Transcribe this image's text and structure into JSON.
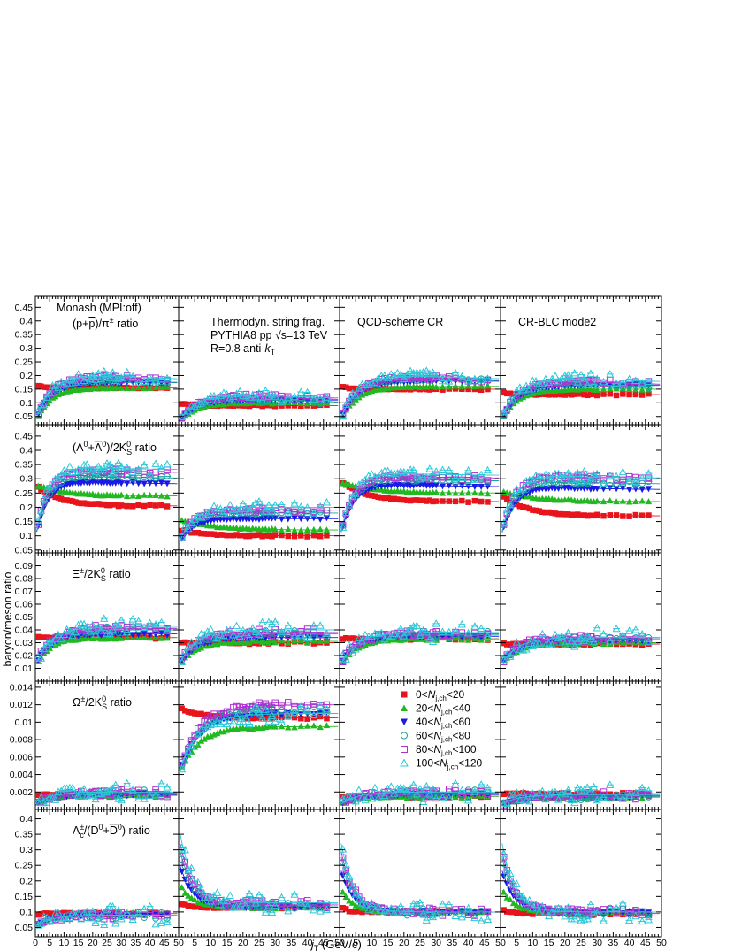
{
  "figure": {
    "ylabel": "baryon/meson ratio",
    "xlabel_main": "j",
    "xlabel_sub": "T",
    "xlabel_unit": " (GeV/c)"
  },
  "columns": [
    {
      "title_lines": [
        "Monash (MPI:off)"
      ]
    },
    {
      "title_lines": [
        "Thermodyn. string frag.",
        "PYTHIA8 pp √s=13 TeV",
        "R=0.8 anti-k_T"
      ]
    },
    {
      "title_lines": [
        "QCD-scheme CR"
      ]
    },
    {
      "title_lines": [
        "CR-BLC mode2"
      ]
    }
  ],
  "rows": [
    {
      "label": "(p+p̄)/π± ratio",
      "ylim": [
        0.02,
        0.49
      ],
      "yticks": [
        0.05,
        0.1,
        0.15,
        0.2,
        0.25,
        0.3,
        0.35,
        0.4,
        0.45
      ],
      "yticklabels": [
        "0.05",
        "0.1",
        "0.15",
        "0.2",
        "0.25",
        "0.3",
        "0.35",
        "0.4",
        "0.45"
      ]
    },
    {
      "label": "(Λ0+Λ̄0)/2K0S ratio",
      "ylim": [
        0.04,
        0.49
      ],
      "yticks": [
        0.05,
        0.1,
        0.15,
        0.2,
        0.25,
        0.3,
        0.35,
        0.4,
        0.45
      ],
      "yticklabels": [
        "0.05",
        "0.1",
        "0.15",
        "0.2",
        "0.25",
        "0.3",
        "0.35",
        "0.4",
        "0.45"
      ]
    },
    {
      "label": "Ξ±/2K0S ratio",
      "ylim": [
        0.0,
        0.1
      ],
      "yticks": [
        0.01,
        0.02,
        0.03,
        0.04,
        0.05,
        0.06,
        0.07,
        0.08,
        0.09
      ],
      "yticklabels": [
        "0.01",
        "0.02",
        "0.03",
        "0.04",
        "0.05",
        "0.06",
        "0.07",
        "0.08",
        "0.09"
      ]
    },
    {
      "label": "Ω±/2K0S ratio",
      "ylim": [
        0.0,
        0.0147
      ],
      "yticks": [
        0.002,
        0.004,
        0.006,
        0.008,
        0.01,
        0.012,
        0.014
      ],
      "yticklabels": [
        "0.002",
        "0.004",
        "0.006",
        "0.008",
        "0.01",
        "0.012",
        "0.014"
      ]
    },
    {
      "label": "Λc±/(D0+D̄0) ratio",
      "ylim": [
        0.02,
        0.43
      ],
      "yticks": [
        0.05,
        0.1,
        0.15,
        0.2,
        0.25,
        0.3,
        0.35,
        0.4
      ],
      "yticklabels": [
        "0.05",
        "0.1",
        "0.15",
        "0.2",
        "0.25",
        "0.3",
        "0.35",
        "0.4"
      ]
    }
  ],
  "xaxis": {
    "xlim": [
      0,
      50
    ],
    "ticks": [
      0,
      5,
      10,
      15,
      20,
      25,
      30,
      35,
      40,
      45,
      50
    ],
    "ticklabels": [
      "0",
      "5",
      "10",
      "15",
      "20",
      "25",
      "30",
      "35",
      "40",
      "45",
      "50"
    ]
  },
  "legend": {
    "placement": "panel row 4, column 3",
    "entries": [
      {
        "pre": "0<",
        "var": "N",
        "sub": "j,ch",
        "post": "<20"
      },
      {
        "pre": "20<",
        "var": "N",
        "sub": "j,ch",
        "post": "<40"
      },
      {
        "pre": "40<",
        "var": "N",
        "sub": "j,ch",
        "post": "<60"
      },
      {
        "pre": "60<",
        "var": "N",
        "sub": "j,ch",
        "post": "<80"
      },
      {
        "pre": "80<",
        "var": "N",
        "sub": "j,ch",
        "post": "<100"
      },
      {
        "pre": "100<",
        "var": "N",
        "sub": "j,ch",
        "post": "<120"
      }
    ]
  },
  "chart_data": {
    "type": "scatter",
    "series": [
      {
        "name": "0<Nj,ch<20",
        "color": "#e8141c",
        "marker": "filled-square"
      },
      {
        "name": "20<Nj,ch<40",
        "color": "#22b822",
        "marker": "filled-triangle-up"
      },
      {
        "name": "40<Nj,ch<60",
        "color": "#1a1ae6",
        "marker": "filled-triangle-down"
      },
      {
        "name": "60<Nj,ch<80",
        "color": "#19a0a0",
        "marker": "open-circle"
      },
      {
        "name": "80<Nj,ch<100",
        "color": "#b030d0",
        "marker": "open-square"
      },
      {
        "name": "100<Nj,ch<120",
        "color": "#2cc8d8",
        "marker": "open-triangle-up"
      }
    ],
    "x": [
      1,
      2,
      3,
      4,
      5,
      6,
      7,
      8,
      9,
      10,
      11,
      12,
      13,
      14,
      15,
      16,
      17,
      18,
      19,
      20,
      21,
      22,
      23,
      24,
      25,
      26,
      27,
      28,
      29,
      30,
      32,
      34,
      36,
      38,
      40,
      42,
      44,
      46
    ],
    "key_values": {
      "description": "Approximate plateau/asymptote values per panel and series [row][col][series]",
      "values": [
        [
          [
            0.155,
            0.155,
            0.175,
            0.185,
            0.195,
            0.2
          ],
          [
            0.09,
            0.1,
            0.11,
            0.115,
            0.125,
            0.13
          ],
          [
            0.15,
            0.16,
            0.18,
            0.19,
            0.195,
            0.2
          ],
          [
            0.13,
            0.15,
            0.165,
            0.17,
            0.18,
            0.19
          ]
        ],
        [
          [
            0.205,
            0.24,
            0.28,
            0.3,
            0.32,
            0.33
          ],
          [
            0.1,
            0.12,
            0.16,
            0.18,
            0.19,
            0.2
          ],
          [
            0.22,
            0.25,
            0.27,
            0.29,
            0.3,
            0.31
          ],
          [
            0.17,
            0.22,
            0.26,
            0.28,
            0.3,
            0.3
          ]
        ],
        [
          [
            0.034,
            0.034,
            0.037,
            0.04,
            0.041,
            0.042
          ],
          [
            0.03,
            0.031,
            0.034,
            0.037,
            0.038,
            0.04
          ],
          [
            0.033,
            0.033,
            0.035,
            0.036,
            0.037,
            0.038
          ],
          [
            0.029,
            0.03,
            0.032,
            0.033,
            0.034,
            0.034
          ]
        ],
        [
          [
            0.0017,
            0.0016,
            0.0017,
            0.0018,
            0.0019,
            0.002
          ],
          [
            0.0105,
            0.0095,
            0.011,
            0.0115,
            0.012,
            0.011
          ],
          [
            0.0015,
            0.0015,
            0.0017,
            0.0018,
            0.0019,
            0.002
          ],
          [
            0.0018,
            0.0014,
            0.0015,
            0.0015,
            0.0016,
            0.0017
          ]
        ],
        [
          [
            0.095,
            0.095,
            0.09,
            0.09,
            0.09,
            0.09
          ],
          [
            0.115,
            0.115,
            0.115,
            0.12,
            0.125,
            0.13
          ],
          [
            0.1,
            0.1,
            0.1,
            0.1,
            0.1,
            0.1
          ],
          [
            0.095,
            0.1,
            0.1,
            0.1,
            0.1,
            0.1
          ]
        ]
      ]
    }
  }
}
